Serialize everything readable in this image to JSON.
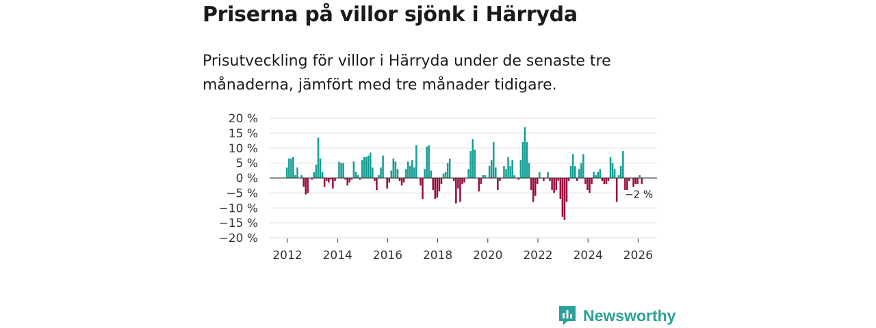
{
  "header": {
    "title": "Priserna på villor sjönk i Härryda",
    "subtitle": "Prisutveckling för villor i Härryda under de senaste tre månaderna, jämfört med tre månader tidigare."
  },
  "brand": {
    "name": "Newsworthy",
    "color": "#2aa198"
  },
  "colors": {
    "positive": "#169e94",
    "negative": "#9c0e3e",
    "grid": "#d9d9d9",
    "zero": "#333333",
    "text": "#333333"
  },
  "chart_data": {
    "type": "bar",
    "title": "Priserna på villor sjönk i Härryda",
    "xlabel": "",
    "ylabel": "",
    "ylim": [
      -20,
      20
    ],
    "yticks": [
      {
        "value": 20,
        "label": "20 %"
      },
      {
        "value": 15,
        "label": "15 %"
      },
      {
        "value": 10,
        "label": "10 %"
      },
      {
        "value": 5,
        "label": "5 %"
      },
      {
        "value": 0,
        "label": "0 %"
      },
      {
        "value": -5,
        "label": "−5 %"
      },
      {
        "value": -10,
        "label": "−10 %"
      },
      {
        "value": -15,
        "label": "−15 %"
      },
      {
        "value": -20,
        "label": "−20 %"
      }
    ],
    "xticks": [
      "2012",
      "2014",
      "2016",
      "2018",
      "2020",
      "2022",
      "2024",
      "2026"
    ],
    "x_start_year": 2012,
    "x_end_year": 2026,
    "annotation": {
      "label": "−2 %",
      "value": -2
    },
    "series": [
      {
        "name": "Prisutveckling",
        "start": "2012-01",
        "interval": "month",
        "values": [
          3.5,
          6.5,
          6.5,
          7,
          1,
          3.5,
          0,
          1,
          -3,
          -5.5,
          -5,
          0,
          -0.5,
          2,
          4.5,
          13.5,
          6.5,
          2,
          -3,
          -1,
          -1.5,
          -0.5,
          -3.5,
          -1,
          0,
          5.5,
          5,
          5,
          -0.5,
          -2.5,
          -1.5,
          -0.5,
          5.5,
          2,
          1,
          -0.5,
          6,
          7,
          7,
          7.5,
          8.5,
          3.5,
          -1,
          -4,
          1,
          3.5,
          7.5,
          0,
          -3.5,
          -1.5,
          2.5,
          6.5,
          5.5,
          3,
          -1,
          -2.5,
          -1.5,
          3,
          5.5,
          4,
          6,
          3.5,
          11,
          0,
          -2.5,
          -7,
          3,
          10.5,
          11,
          2.5,
          -4,
          -7,
          -6.5,
          -4.5,
          -2,
          1.5,
          2,
          5,
          6.5,
          0,
          -1,
          -8.5,
          -3.5,
          -8,
          -2,
          -1.5,
          0,
          3,
          9,
          13,
          9.5,
          0,
          -4.5,
          -2,
          1,
          1,
          0,
          4,
          6,
          12,
          3.5,
          -4,
          -1,
          0,
          4,
          3,
          7,
          4,
          6,
          1,
          0,
          -0.5,
          6,
          12,
          17,
          12,
          5,
          -4,
          -8,
          -6,
          -2,
          2,
          0,
          -1,
          0,
          2,
          -1,
          -4,
          -5,
          -4,
          -1,
          -7,
          -13,
          -14,
          -8,
          -1,
          4,
          8,
          4,
          -1,
          3,
          5,
          8,
          -2,
          -4,
          -5,
          -2,
          2,
          1,
          2,
          3,
          -1,
          -2,
          -2,
          -1,
          7,
          5,
          3,
          -8,
          1,
          4,
          9,
          -4,
          -4,
          -1,
          0,
          -3,
          -2,
          -2,
          1,
          -2
        ]
      }
    ]
  }
}
